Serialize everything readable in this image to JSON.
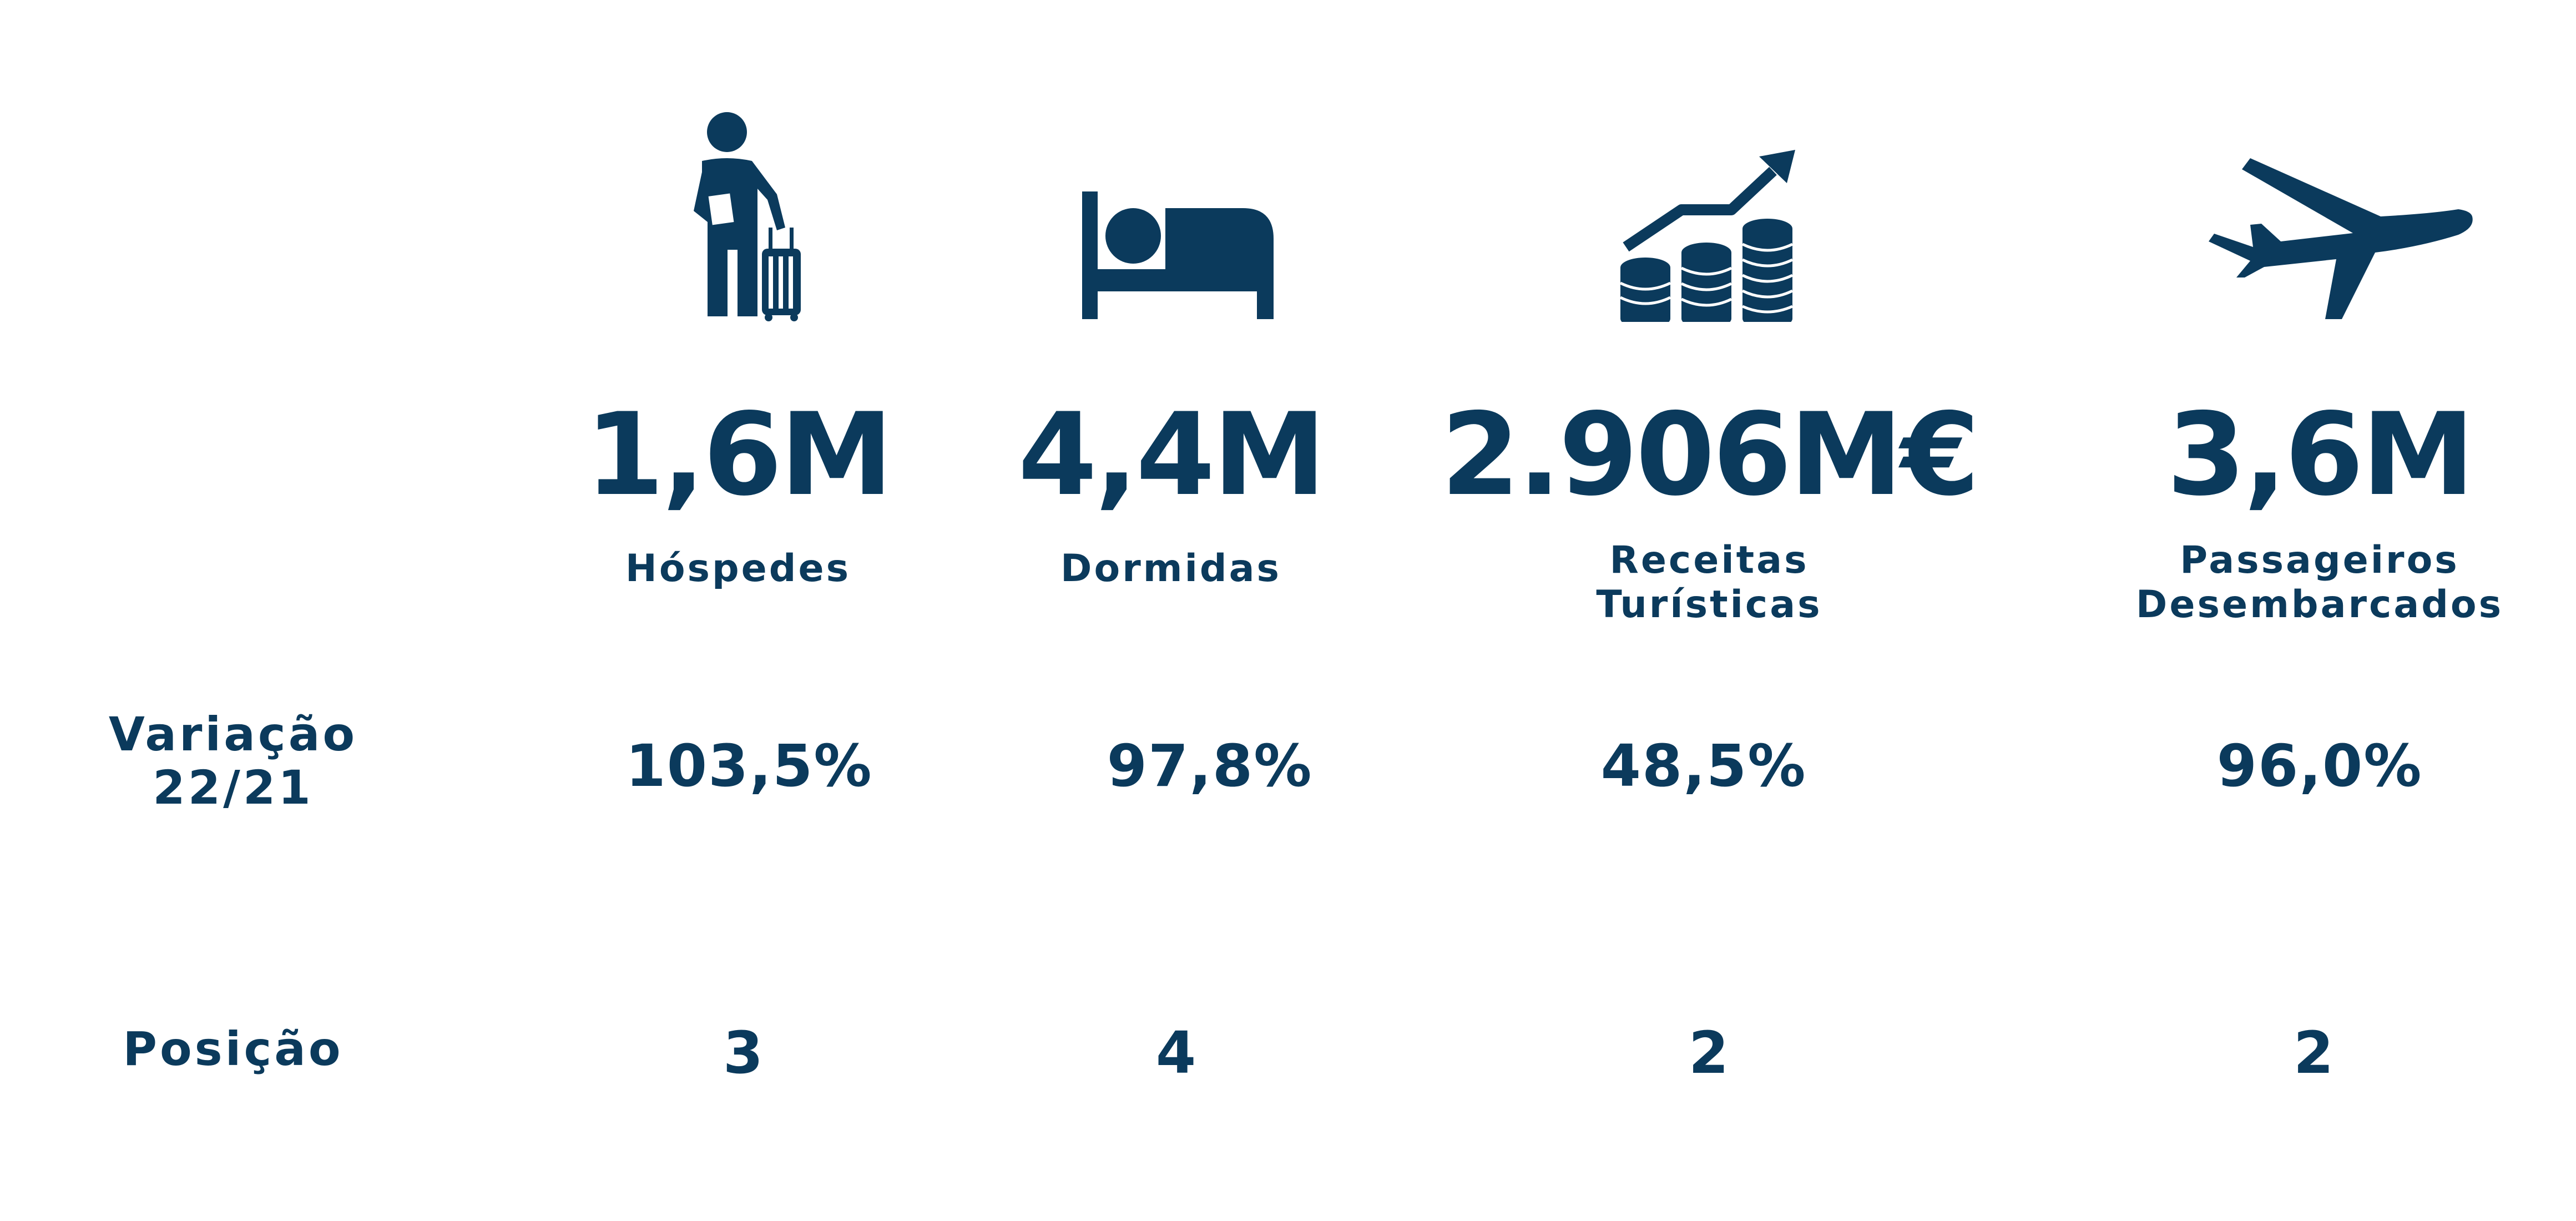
{
  "colors": {
    "primary": "#0b3a5c",
    "background": "#ffffff"
  },
  "stats": [
    {
      "icon": "traveler-with-suitcase-icon",
      "value": "1,6M",
      "label_lines": [
        "Hóspedes"
      ],
      "variation": "103,5%",
      "position": "3"
    },
    {
      "icon": "bed-icon",
      "value": "4,4M",
      "label_lines": [
        "Dormidas"
      ],
      "variation": "97,8%",
      "position": "4"
    },
    {
      "icon": "coins-growth-chart-icon",
      "value": "2.906M€",
      "label_lines": [
        "Receitas",
        "Turísticas"
      ],
      "variation": "48,5%",
      "position": "2"
    },
    {
      "icon": "airplane-icon",
      "value": "3,6M",
      "label_lines": [
        "Passageiros",
        "Desembarcados"
      ],
      "variation": "96,0%",
      "position": "2"
    }
  ],
  "rows": {
    "variation_label_lines": [
      "Variação",
      "22/21"
    ],
    "position_label": "Posição"
  }
}
